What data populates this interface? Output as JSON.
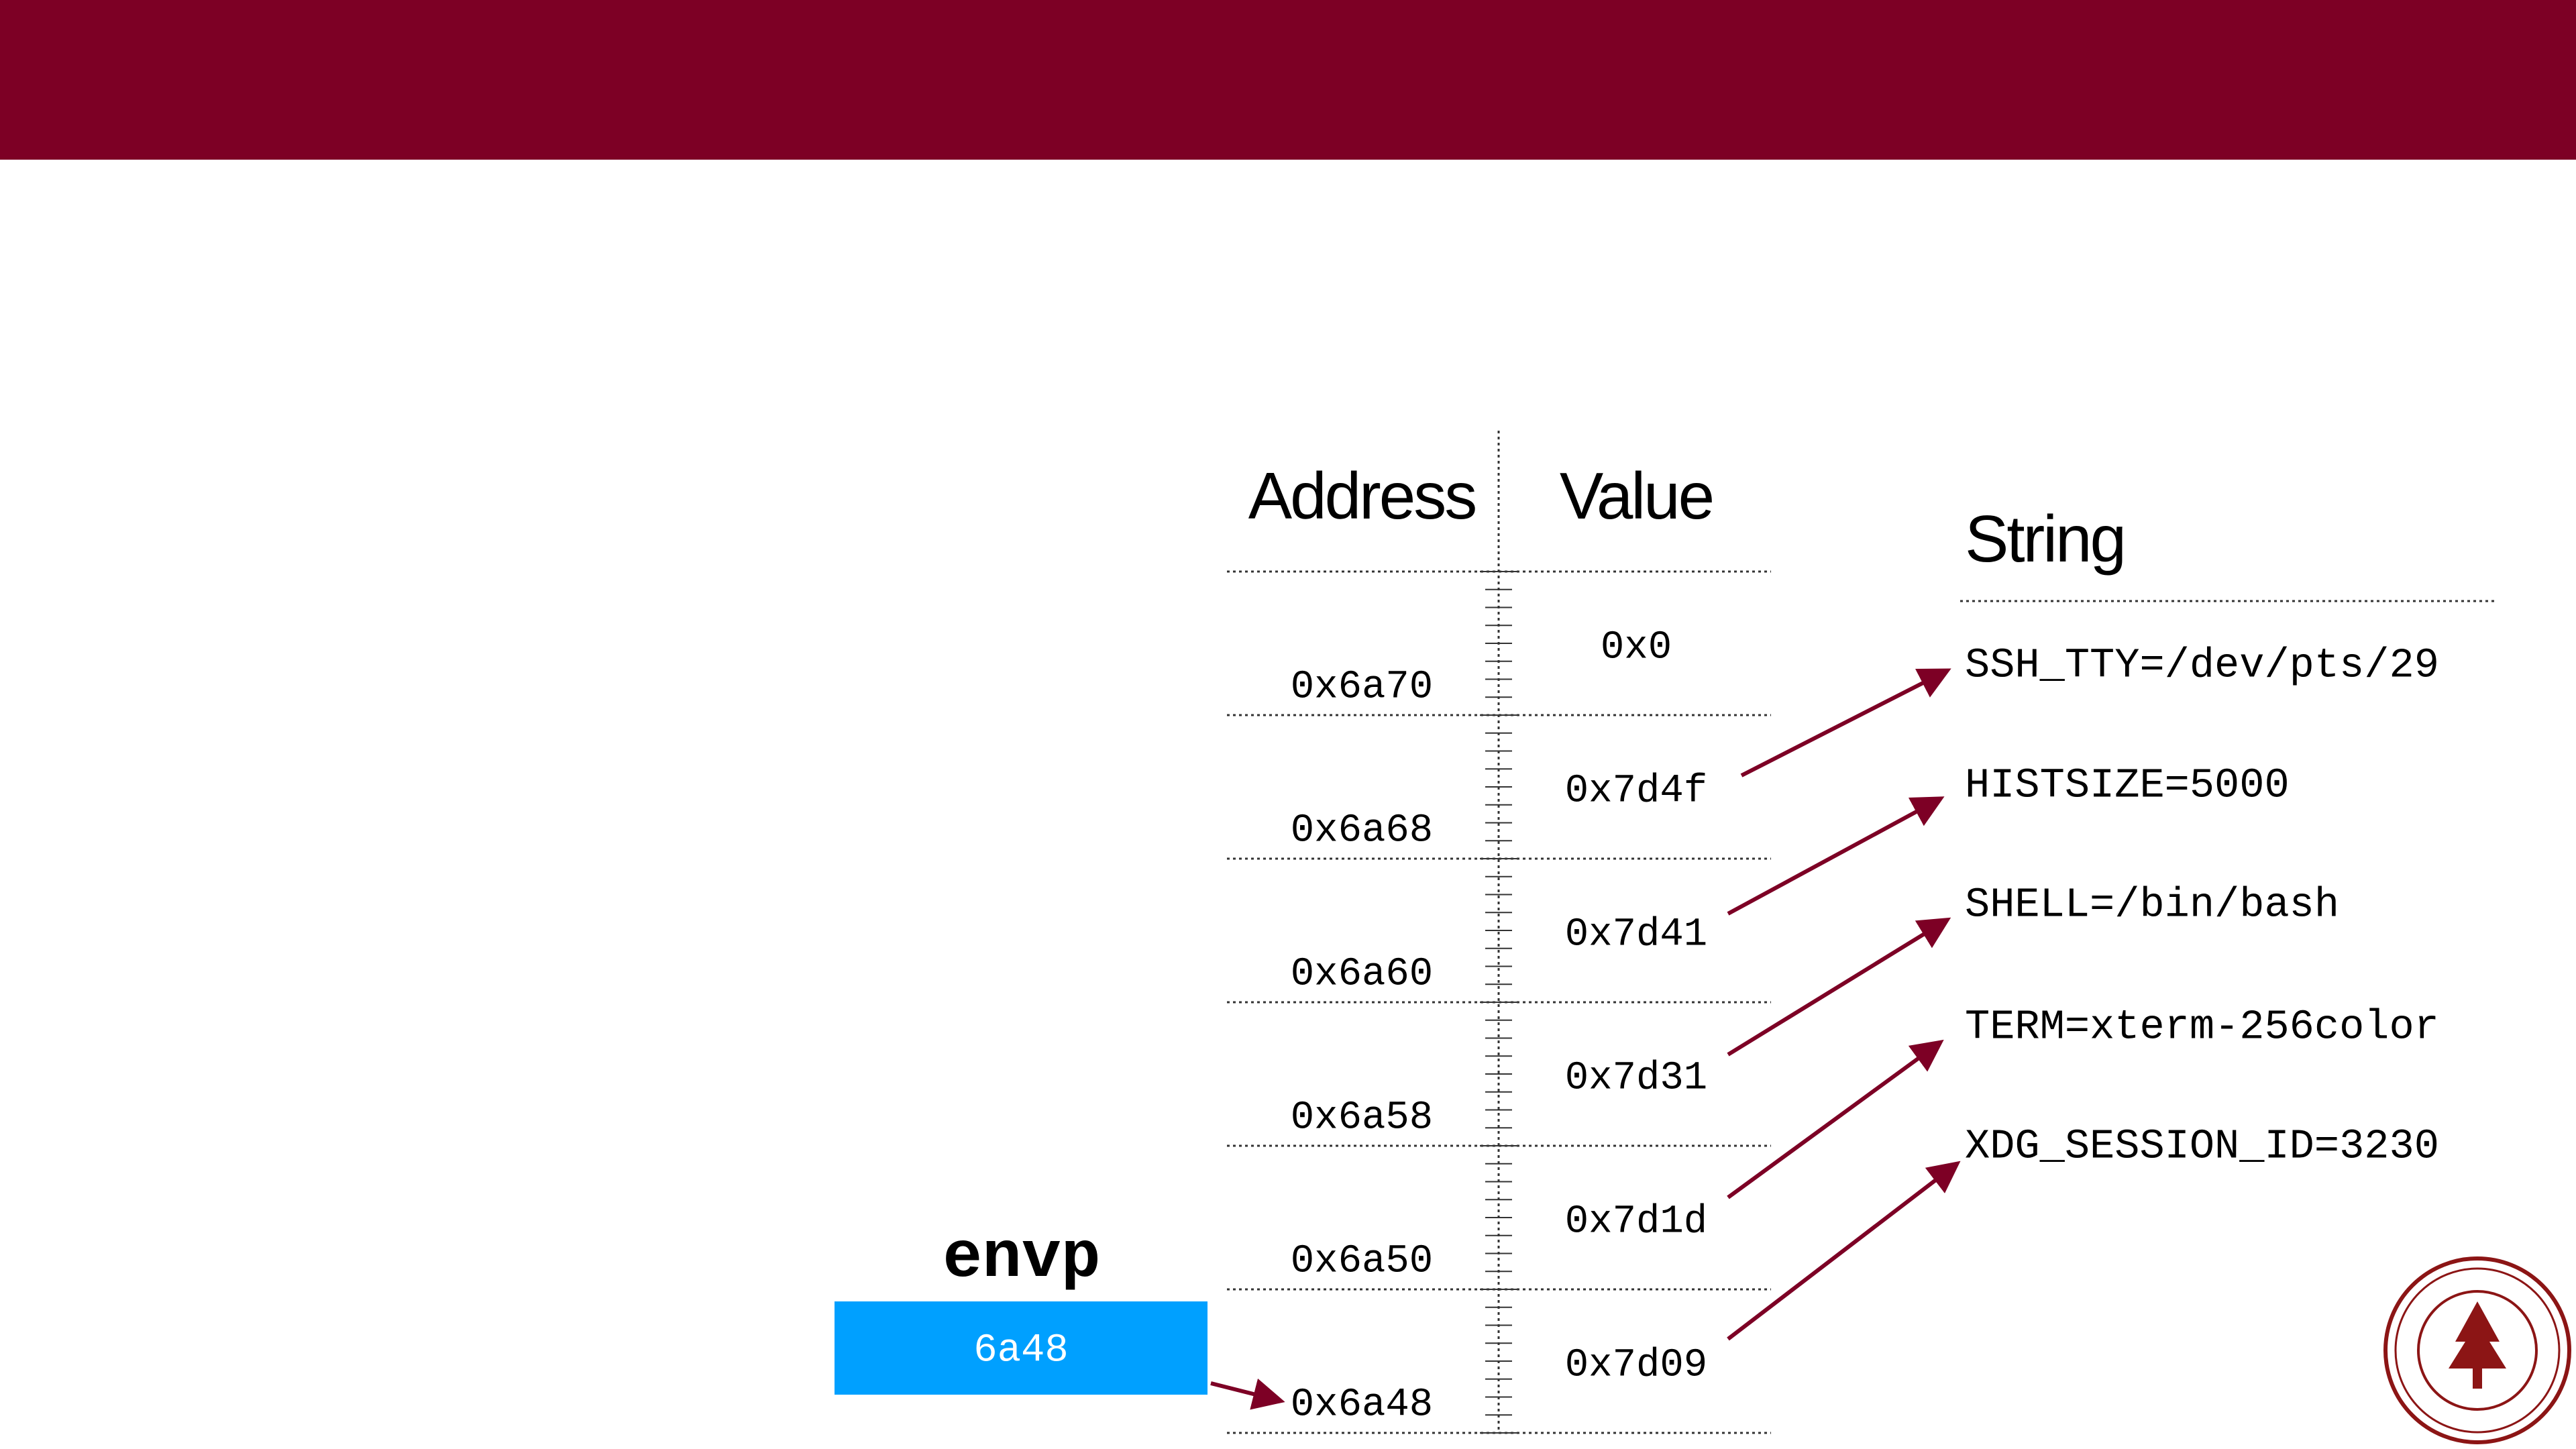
{
  "table": {
    "headers": [
      "Address",
      "Value"
    ],
    "rows": [
      [
        "0x6a70",
        "0x0"
      ],
      [
        "0x6a68",
        "0x7d4f"
      ],
      [
        "0x6a60",
        "0x7d41"
      ],
      [
        "0x6a58",
        "0x7d31"
      ],
      [
        "0x6a50",
        "0x7d1d"
      ],
      [
        "0x6a48",
        "0x7d09"
      ]
    ]
  },
  "strings": {
    "header": "String",
    "items": [
      "SSH_TTY=/dev/pts/29",
      "HISTSIZE=5000",
      "SHELL=/bin/bash",
      "TERM=xterm-256color",
      "XDG_SESSION_ID=3230"
    ]
  },
  "envp": {
    "label": "envp",
    "value": "6a48"
  }
}
